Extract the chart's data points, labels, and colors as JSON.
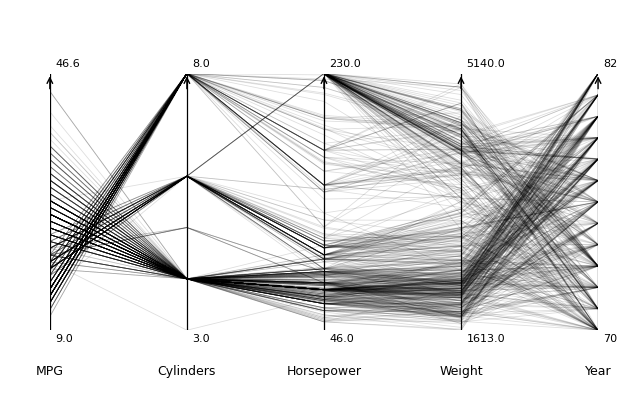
{
  "axes": [
    "MPG",
    "Cylinders",
    "Horsepower",
    "Weight",
    "Year"
  ],
  "axis_mins": [
    9.0,
    3.0,
    46.0,
    1613.0,
    70
  ],
  "axis_maxs": [
    46.6,
    8.0,
    230.0,
    5140.0,
    82
  ],
  "axis_min_labels": [
    "9.0",
    "3.0",
    "46.0",
    "1613.0",
    "70"
  ],
  "axis_max_labels": [
    "46.6",
    "8.0",
    "230.0",
    "5140.0",
    "82"
  ],
  "line_color": "#000000",
  "line_alpha": 0.13,
  "line_width": 0.6,
  "background_color": "#ffffff",
  "fig_width": 6.23,
  "fig_height": 4.14,
  "dpi": 100,
  "label_fontsize": 9,
  "tick_fontsize": 8
}
